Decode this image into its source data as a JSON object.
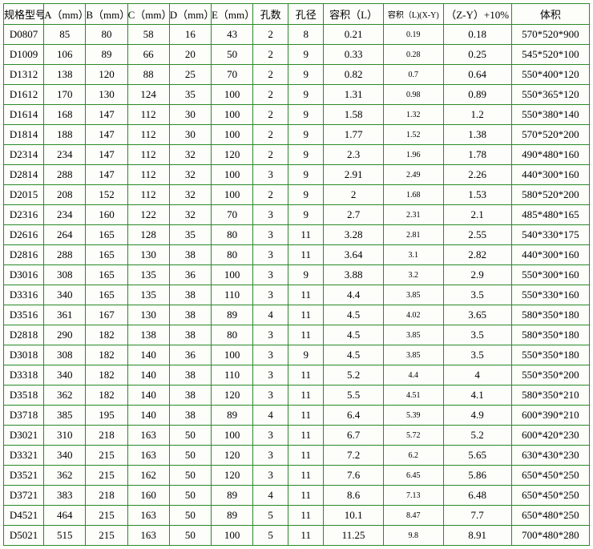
{
  "table": {
    "columns": [
      "规格型号",
      "A（mm）",
      "B（mm）",
      "C（mm）",
      "D（mm）",
      "E（mm）",
      "孔数",
      "孔径",
      "容积（L）",
      "容积（L)(X-Y)",
      "（Z-Y）+10%",
      "体积"
    ],
    "col_classes": [
      "c0",
      "c1",
      "c2",
      "c3",
      "c4",
      "c5",
      "c6",
      "c7",
      "c8",
      "c9",
      "c10",
      "c11"
    ],
    "rows": [
      [
        "D0807",
        "85",
        "80",
        "58",
        "16",
        "43",
        "2",
        "8",
        "0.21",
        "0.19",
        "0.18",
        "570*520*900"
      ],
      [
        "D1009",
        "106",
        "89",
        "66",
        "20",
        "50",
        "2",
        "9",
        "0.33",
        "0.28",
        "0.25",
        "545*520*100"
      ],
      [
        "D1312",
        "138",
        "120",
        "88",
        "25",
        "70",
        "2",
        "9",
        "0.82",
        "0.7",
        "0.64",
        "550*400*120"
      ],
      [
        "D1612",
        "170",
        "130",
        "124",
        "35",
        "100",
        "2",
        "9",
        "1.31",
        "0.98",
        "0.89",
        "550*365*120"
      ],
      [
        "D1614",
        "168",
        "147",
        "112",
        "30",
        "100",
        "2",
        "9",
        "1.58",
        "1.32",
        "1.2",
        "550*380*140"
      ],
      [
        "D1814",
        "188",
        "147",
        "112",
        "30",
        "100",
        "2",
        "9",
        "1.77",
        "1.52",
        "1.38",
        "570*520*200"
      ],
      [
        "D2314",
        "234",
        "147",
        "112",
        "32",
        "120",
        "2",
        "9",
        "2.3",
        "1.96",
        "1.78",
        "490*480*160"
      ],
      [
        "D2814",
        "288",
        "147",
        "112",
        "32",
        "100",
        "3",
        "9",
        "2.91",
        "2.49",
        "2.26",
        "440*300*160"
      ],
      [
        "D2015",
        "208",
        "152",
        "112",
        "32",
        "100",
        "2",
        "9",
        "2",
        "1.68",
        "1.53",
        "580*520*200"
      ],
      [
        "D2316",
        "234",
        "160",
        "122",
        "32",
        "70",
        "3",
        "9",
        "2.7",
        "2.31",
        "2.1",
        "485*480*165"
      ],
      [
        "D2616",
        "264",
        "165",
        "128",
        "35",
        "80",
        "3",
        "11",
        "3.28",
        "2.81",
        "2.55",
        "540*330*175"
      ],
      [
        "D2816",
        "288",
        "165",
        "130",
        "38",
        "80",
        "3",
        "11",
        "3.64",
        "3.1",
        "2.82",
        "440*300*160"
      ],
      [
        "D3016",
        "308",
        "165",
        "135",
        "36",
        "100",
        "3",
        "9",
        "3.88",
        "3.2",
        "2.9",
        "550*300*160"
      ],
      [
        "D3316",
        "340",
        "165",
        "135",
        "38",
        "110",
        "3",
        "11",
        "4.4",
        "3.85",
        "3.5",
        "550*330*160"
      ],
      [
        "D3516",
        "361",
        "167",
        "130",
        "38",
        "89",
        "4",
        "11",
        "4.5",
        "4.02",
        "3.65",
        "580*350*180"
      ],
      [
        "D2818",
        "290",
        "182",
        "138",
        "38",
        "80",
        "3",
        "11",
        "4.5",
        "3.85",
        "3.5",
        "580*350*180"
      ],
      [
        "D3018",
        "308",
        "182",
        "140",
        "36",
        "100",
        "3",
        "9",
        "4.5",
        "3.85",
        "3.5",
        "550*350*180"
      ],
      [
        "D3318",
        "340",
        "182",
        "140",
        "38",
        "110",
        "3",
        "11",
        "5.2",
        "4.4",
        "4",
        "550*350*200"
      ],
      [
        "D3518",
        "362",
        "182",
        "140",
        "38",
        "120",
        "3",
        "11",
        "5.5",
        "4.51",
        "4.1",
        "580*350*210"
      ],
      [
        "D3718",
        "385",
        "195",
        "140",
        "38",
        "89",
        "4",
        "11",
        "6.4",
        "5.39",
        "4.9",
        "600*390*210"
      ],
      [
        "D3021",
        "310",
        "218",
        "163",
        "50",
        "100",
        "3",
        "11",
        "6.7",
        "5.72",
        "5.2",
        "600*420*230"
      ],
      [
        "D3321",
        "340",
        "215",
        "163",
        "50",
        "120",
        "3",
        "11",
        "7.2",
        "6.2",
        "5.65",
        "630*430*230"
      ],
      [
        "D3521",
        "362",
        "215",
        "162",
        "50",
        "120",
        "3",
        "11",
        "7.6",
        "6.45",
        "5.86",
        "650*450*250"
      ],
      [
        "D3721",
        "383",
        "218",
        "160",
        "50",
        "89",
        "4",
        "11",
        "8.6",
        "7.13",
        "6.48",
        "650*450*250"
      ],
      [
        "D4521",
        "464",
        "215",
        "163",
        "50",
        "89",
        "5",
        "11",
        "10.1",
        "8.47",
        "7.7",
        "650*480*250"
      ],
      [
        "D5021",
        "515",
        "215",
        "163",
        "50",
        "100",
        "5",
        "11",
        "11.25",
        "9.8",
        "8.91",
        "700*480*280"
      ]
    ]
  }
}
